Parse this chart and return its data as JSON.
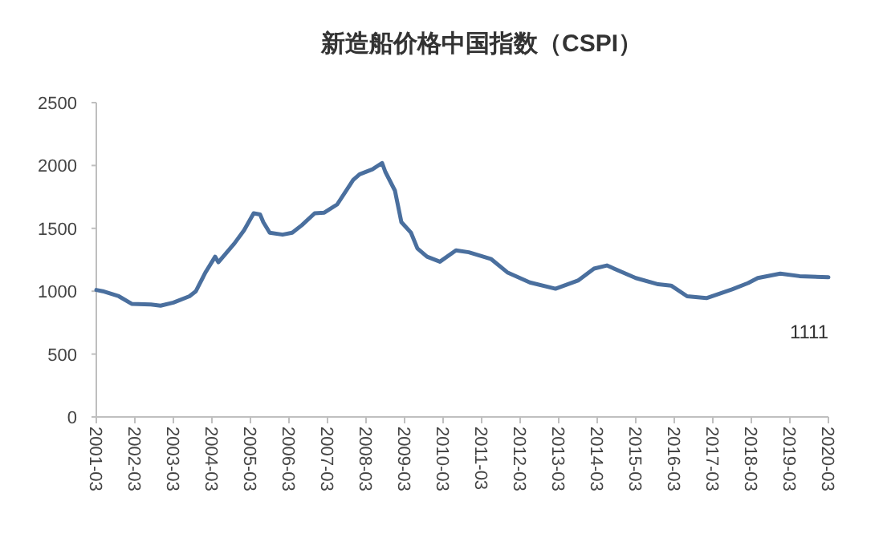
{
  "chart_data": {
    "type": "line",
    "title": "新造船价格中国指数（CSPI）",
    "x": [
      "2001-03",
      "2001-05",
      "2001-10",
      "2002-02",
      "2002-08",
      "2002-11",
      "2003-03",
      "2003-08",
      "2003-10",
      "2004-01",
      "2004-04",
      "2004-05",
      "2004-10",
      "2005-01",
      "2005-04",
      "2005-06",
      "2005-07",
      "2005-09",
      "2006-01",
      "2006-04",
      "2006-07",
      "2006-11",
      "2007-02",
      "2007-06",
      "2007-11",
      "2008-01",
      "2008-05",
      "2008-08",
      "2008-09",
      "2008-12",
      "2009-02",
      "2009-05",
      "2009-07",
      "2009-10",
      "2010-02",
      "2010-07",
      "2010-11",
      "2011-06",
      "2011-11",
      "2012-06",
      "2013-02",
      "2013-09",
      "2014-02",
      "2014-06",
      "2015-03",
      "2015-10",
      "2016-02",
      "2016-07",
      "2017-01",
      "2017-09",
      "2018-02",
      "2018-05",
      "2018-12",
      "2019-06",
      "2020-03"
    ],
    "series": [
      {
        "color": "#4a6f9e",
        "values": [
          1010,
          1000,
          960,
          900,
          895,
          885,
          910,
          960,
          1000,
          1150,
          1275,
          1230,
          1380,
          1485,
          1620,
          1610,
          1550,
          1465,
          1450,
          1465,
          1525,
          1620,
          1625,
          1690,
          1885,
          1930,
          1970,
          2020,
          1950,
          1800,
          1550,
          1465,
          1340,
          1275,
          1235,
          1325,
          1310,
          1255,
          1150,
          1070,
          1020,
          1085,
          1180,
          1205,
          1105,
          1055,
          1045,
          960,
          945,
          1015,
          1065,
          1105,
          1140,
          1120,
          1111
        ]
      }
    ],
    "xlim": [
      "2001-03",
      "2020-03"
    ],
    "xticks": [
      "2001-03",
      "2002-03",
      "2003-03",
      "2004-03",
      "2005-03",
      "2006-03",
      "2007-03",
      "2008-03",
      "2009-03",
      "2010-03",
      "2011-03",
      "2012-03",
      "2013-03",
      "2014-03",
      "2015-03",
      "2016-03",
      "2017-03",
      "2018-03",
      "2019-03",
      "2020-03"
    ],
    "ylim": [
      0,
      2500
    ],
    "yticks": [
      0,
      500,
      1000,
      1500,
      2000,
      2500
    ],
    "annotations": [
      {
        "text": "1111",
        "x": "2020-03",
        "y": 1111
      }
    ],
    "grid": false,
    "marker": "none",
    "line_style": "solid"
  }
}
